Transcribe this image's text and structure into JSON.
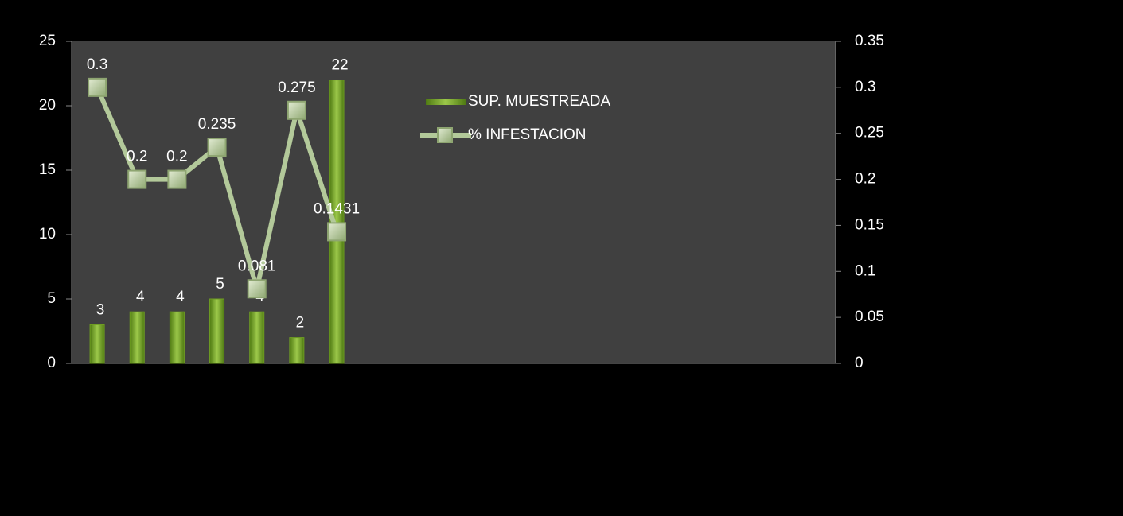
{
  "chart_data": {
    "type": "bar_line",
    "categories": [
      null,
      null,
      null,
      null,
      null,
      null,
      null,
      null,
      null,
      null,
      null,
      null,
      null,
      null,
      null,
      null,
      null,
      null,
      null
    ],
    "series": [
      {
        "name": "SUP. MUESTREADA",
        "type": "bar",
        "color": "#6f9e22",
        "values": [
          3,
          4,
          4,
          5,
          4,
          2,
          22,
          null,
          null,
          null,
          null,
          null,
          null,
          null,
          null,
          null,
          null,
          null,
          null
        ]
      },
      {
        "name": "% INFESTACION",
        "type": "line",
        "axis": "y2",
        "color": "#b3c99a",
        "values": [
          0.3,
          0.2,
          0.2,
          0.235,
          0.081,
          0.275,
          0.1431,
          null,
          null,
          null,
          null,
          null,
          null,
          null,
          null,
          null,
          null,
          null,
          null
        ]
      }
    ],
    "ylim": [
      0,
      25
    ],
    "yticks": [
      0,
      5,
      10,
      15,
      20,
      25
    ],
    "y2lim": [
      0,
      0.35
    ],
    "y2ticks": [
      0,
      0.05,
      0.1,
      0.15,
      0.2,
      0.25,
      0.3,
      0.35
    ]
  }
}
